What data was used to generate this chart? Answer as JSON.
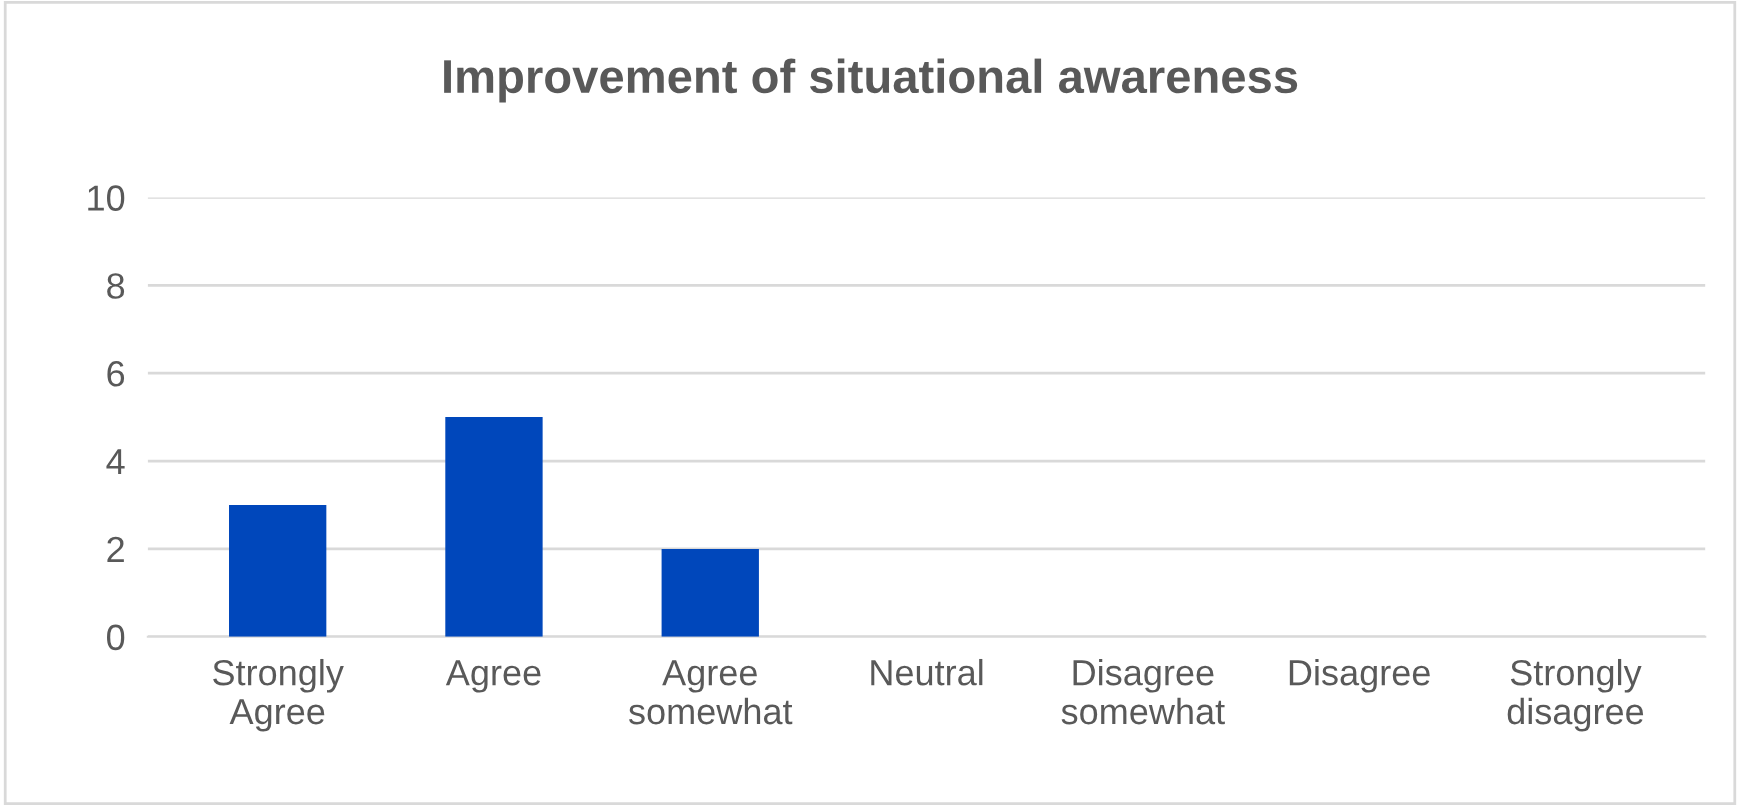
{
  "chart_data": {
    "type": "bar",
    "title": "Improvement of situational awareness",
    "categories": [
      "Strongly\nAgree",
      "Agree",
      "Agree\nsomewhat",
      "Neutral",
      "Disagree\nsomewhat",
      "Disagree",
      "Strongly\ndisagree"
    ],
    "values": [
      3,
      5,
      2,
      0,
      0,
      0,
      0
    ],
    "color": "#0047bb",
    "ylim": [
      0,
      10
    ],
    "yticks": [
      0,
      2,
      4,
      6,
      8,
      10
    ],
    "grid": "y"
  }
}
